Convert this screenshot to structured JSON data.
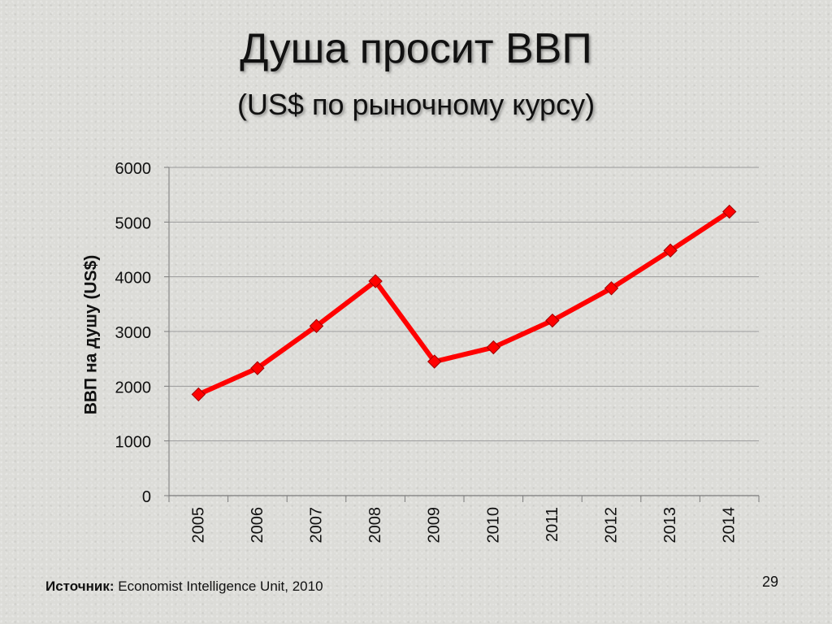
{
  "slide": {
    "title": "Душа просит ВВП",
    "subtitle": "(US$ по рыночному курсу)",
    "source_label": "Источник:",
    "source_text": "Economist Intelligence Unit, 2010",
    "page_number": "29"
  },
  "chart_data": {
    "type": "line",
    "title": "",
    "xlabel": "",
    "ylabel": "ВВП на душу (US$)",
    "categories": [
      "2005",
      "2006",
      "2007",
      "2008",
      "2009",
      "2010",
      "2011",
      "2012",
      "2013",
      "2014"
    ],
    "series": [
      {
        "values": [
          1850,
          2330,
          3100,
          3920,
          2450,
          2710,
          3200,
          3790,
          4480,
          5190
        ],
        "color": "#ff0000",
        "marker": "diamond"
      }
    ],
    "ylim": [
      0,
      6000
    ],
    "yticks": [
      0,
      1000,
      2000,
      3000,
      4000,
      5000,
      6000
    ],
    "grid": true,
    "legend": "none"
  }
}
